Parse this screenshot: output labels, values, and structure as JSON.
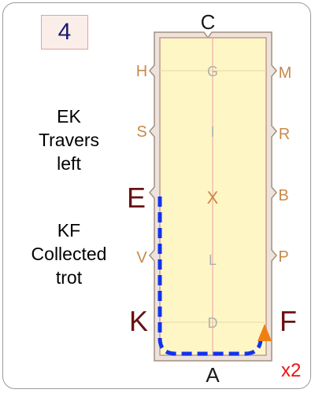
{
  "pattern_number": "4",
  "movements": [
    {
      "lines": [
        "EK",
        "Travers",
        "left"
      ]
    },
    {
      "lines": [
        "KF",
        "Collected",
        "trot"
      ]
    }
  ],
  "repeat": "x2",
  "arena": {
    "outer_letters": {
      "C": "C",
      "A": "A",
      "H": "H",
      "S": "S",
      "E": "E",
      "V": "V",
      "K": "K",
      "M": "M",
      "R": "R",
      "B": "B",
      "P": "P",
      "F": "F"
    },
    "center_letters": {
      "G": "G",
      "I": "I",
      "X": "X",
      "L": "L",
      "D": "D"
    }
  },
  "colors": {
    "arena_fill": "#fff6c6",
    "arena_border": "#c4998f",
    "route": "#1133ee",
    "start_marker": "#f07f12",
    "letter_tan": "#c8894a",
    "letter_dark_red": "#6b1111",
    "center_letter": "#b0b0b0"
  },
  "route": {
    "style": "dashed",
    "from": "E",
    "via": "K",
    "to": "F"
  },
  "icons": {
    "start_marker": "triangle-icon"
  }
}
